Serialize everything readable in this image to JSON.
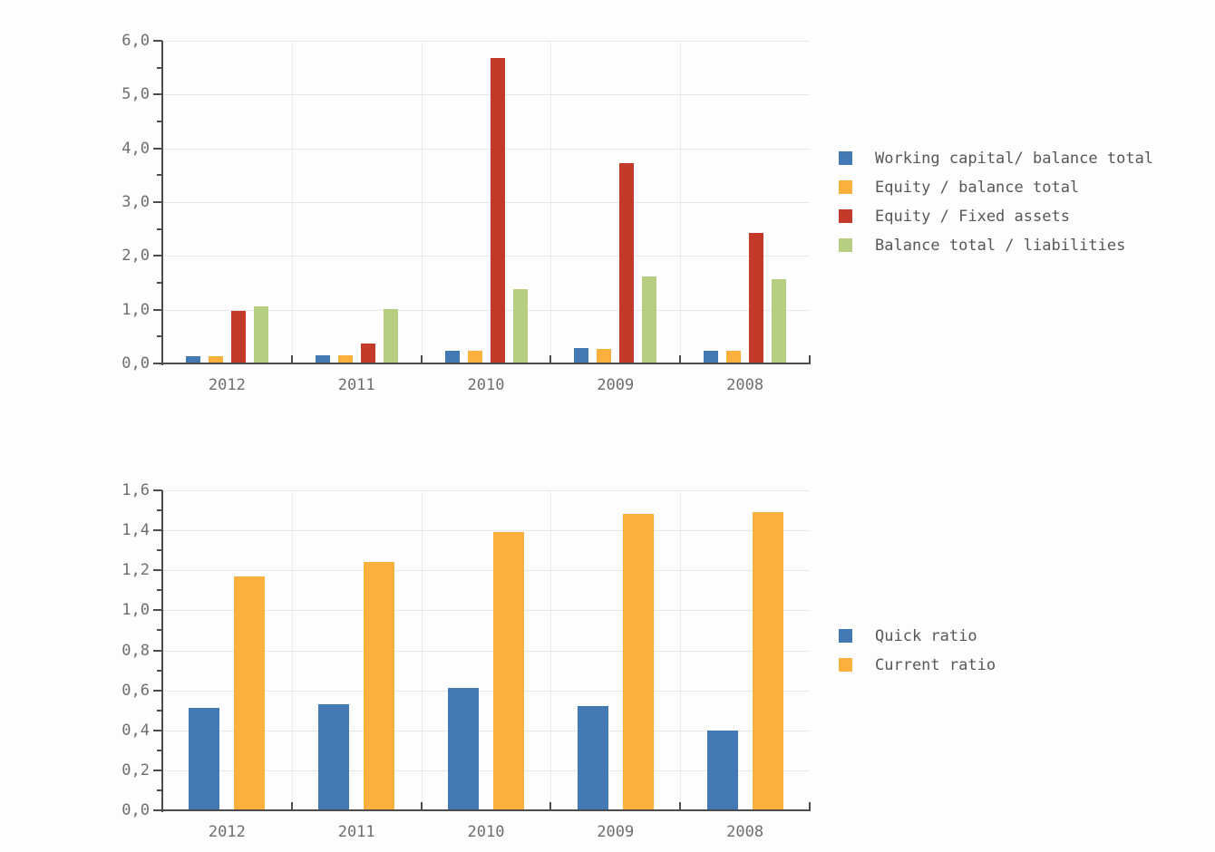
{
  "page": {
    "background_color": "#fdfdfd",
    "axis_color": "#4c4c4c",
    "gridline_color": "#e7e7e7",
    "label_color": "#6e6e6e"
  },
  "chart_data": [
    {
      "type": "bar",
      "title": "",
      "xlabel": "",
      "ylabel": "",
      "grid": true,
      "legend_position": "right",
      "categories": [
        "2012",
        "2011",
        "2010",
        "2009",
        "2008"
      ],
      "series": [
        {
          "name": "Working capital/ balance total",
          "color": "#4379b4",
          "values": [
            0.13,
            0.16,
            0.24,
            0.28,
            0.23
          ]
        },
        {
          "name": "Equity / balance total",
          "color": "#fab03c",
          "values": [
            0.13,
            0.16,
            0.24,
            0.27,
            0.24
          ]
        },
        {
          "name": "Equity / Fixed assets",
          "color": "#c33a2b",
          "values": [
            0.98,
            0.37,
            5.68,
            3.72,
            2.43
          ]
        },
        {
          "name": "Balance total / liabilities",
          "color": "#b6ce7f",
          "values": [
            1.06,
            1.01,
            1.39,
            1.62,
            1.56
          ]
        }
      ],
      "y_axis": {
        "min": 0,
        "max": 6,
        "major_step": 1,
        "minor_step": 0.5,
        "decimal_separator": ",",
        "tick_labels": [
          "0,0",
          "1,0",
          "2,0",
          "3,0",
          "4,0",
          "5,0",
          "6,0"
        ]
      }
    },
    {
      "type": "bar",
      "title": "",
      "xlabel": "",
      "ylabel": "",
      "grid": true,
      "legend_position": "right",
      "categories": [
        "2012",
        "2011",
        "2010",
        "2009",
        "2008"
      ],
      "series": [
        {
          "name": "Quick ratio",
          "color": "#4379b4",
          "values": [
            0.51,
            0.53,
            0.61,
            0.52,
            0.4
          ]
        },
        {
          "name": "Current ratio",
          "color": "#fab03c",
          "values": [
            1.17,
            1.24,
            1.39,
            1.48,
            1.49
          ]
        }
      ],
      "y_axis": {
        "min": 0,
        "max": 1.6,
        "major_step": 0.2,
        "minor_step": 0.1,
        "decimal_separator": ",",
        "tick_labels": [
          "0,0",
          "0,2",
          "0,4",
          "0,6",
          "0,8",
          "1,0",
          "1,2",
          "1,4",
          "1,6"
        ]
      }
    }
  ]
}
